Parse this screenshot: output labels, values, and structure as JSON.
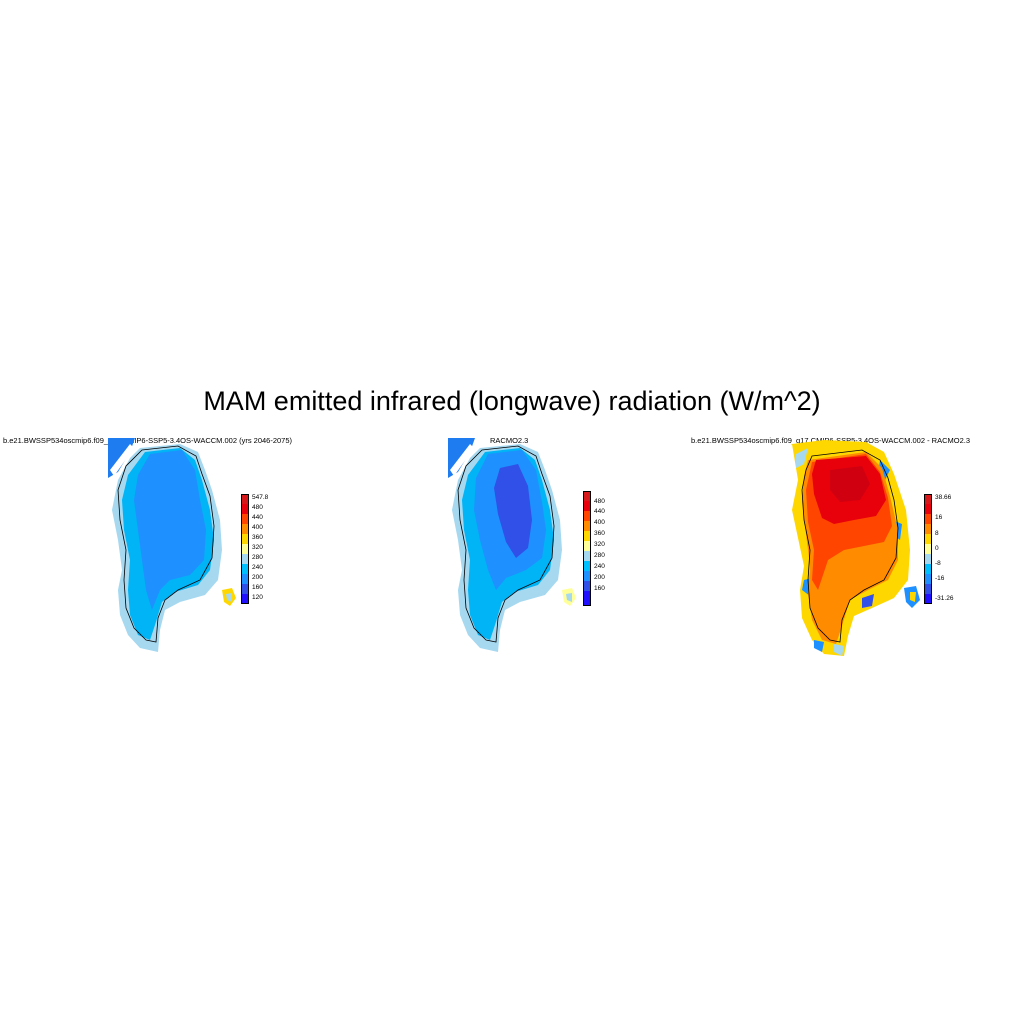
{
  "figure": {
    "title": "MAM emitted infrared (longwave) radiation (W/m^2)"
  },
  "panels": [
    {
      "title": "b.e21.BWSSP534oscmip6.f09_g17.CMIP6-SSP5-3.4OS-WACCM.002 (yrs 2046-2075)",
      "colorbar": {
        "labels": [
          "547.8",
          "480",
          "440",
          "400",
          "360",
          "320",
          "280",
          "240",
          "200",
          "160",
          "120"
        ],
        "colors": [
          "#d7191c",
          "#e8000b",
          "#ff4500",
          "#ff8c00",
          "#ffd700",
          "#ffff99",
          "#a6d8f0",
          "#1e90ff",
          "#00bfff",
          "#3050e8",
          "#2010ff"
        ]
      }
    },
    {
      "title": "RACMO2.3",
      "colorbar": {
        "labels": [
          "480",
          "440",
          "400",
          "360",
          "320",
          "280",
          "240",
          "200",
          "160"
        ],
        "colors": [
          "#d7191c",
          "#e8000b",
          "#ff4500",
          "#ff8c00",
          "#ffd700",
          "#ffff99",
          "#a6d8f0",
          "#1e90ff",
          "#00bfff",
          "#3050e8",
          "#2010ff"
        ]
      }
    },
    {
      "title": "b.e21.BWSSP534oscmip6.f09_g17.CMIP6-SSP5-3.4OS-WACCM.002 - RACMO2.3",
      "colorbar": {
        "labels": [
          "38.66",
          "16",
          "8",
          "0",
          "-8",
          "-16",
          "-31.26"
        ],
        "colors": [
          "#d7191c",
          "#e8000b",
          "#ff4500",
          "#ff8c00",
          "#ffd700",
          "#ffff99",
          "#a6d8f0",
          "#00bfff",
          "#1e90ff",
          "#3050e8",
          "#2010ff"
        ]
      }
    }
  ]
}
